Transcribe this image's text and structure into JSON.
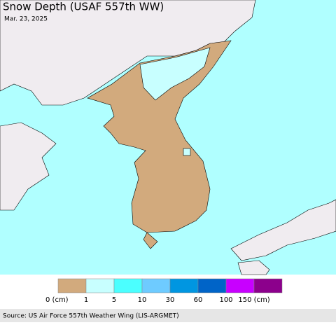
{
  "header": {
    "title": "Snow Depth (USAF 557th WW)",
    "date": "Mar. 23, 2025"
  },
  "legend": {
    "colors": [
      "#d2aa7d",
      "#c8ffff",
      "#4bffff",
      "#6ecbff",
      "#0096e1",
      "#0064c8",
      "#c800ff",
      "#8c008c"
    ],
    "labels": [
      "0 (cm)",
      "1",
      "5",
      "10",
      "30",
      "60",
      "100",
      "150 (cm)"
    ]
  },
  "footer": {
    "source": "Source: US Air Force 557th Weather Wing (LIS-ARGMET)"
  }
}
